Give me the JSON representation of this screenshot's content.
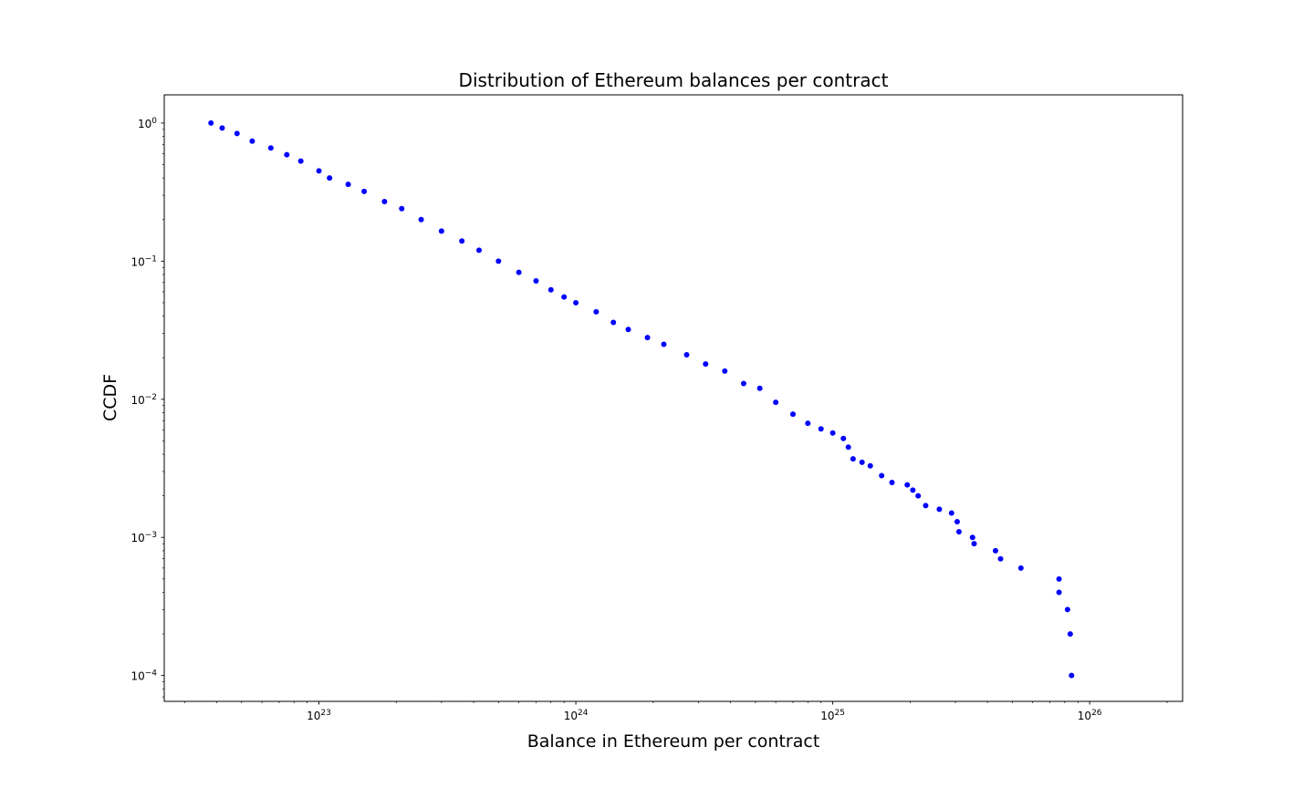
{
  "chart_data": {
    "type": "scatter",
    "title": "Distribution of Ethereum balances per contract",
    "xlabel": "Balance in Ethereum per contract",
    "ylabel": "CCDF",
    "x_scale": "log",
    "y_scale": "log",
    "xlim": [
      2.5e+22,
      2.3e+26
    ],
    "ylim": [
      6.5e-05,
      1.6
    ],
    "x_ticks": [
      {
        "value": 1e+23,
        "base": "10",
        "exp": "23"
      },
      {
        "value": 1e+24,
        "base": "10",
        "exp": "24"
      },
      {
        "value": 1e+25,
        "base": "10",
        "exp": "25"
      },
      {
        "value": 1e+26,
        "base": "10",
        "exp": "26"
      }
    ],
    "y_ticks": [
      {
        "value": 1,
        "base": "10",
        "exp": "0"
      },
      {
        "value": 0.1,
        "base": "10",
        "exp": "−1"
      },
      {
        "value": 0.01,
        "base": "10",
        "exp": "−2"
      },
      {
        "value": 0.001,
        "base": "10",
        "exp": "−3"
      },
      {
        "value": 0.0001,
        "base": "10",
        "exp": "−4"
      }
    ],
    "grid": false,
    "marker_color": "#0000ff",
    "series": [
      {
        "points": [
          [
            3.8e+22,
            1.0
          ],
          [
            4.2e+22,
            0.92
          ],
          [
            4.8e+22,
            0.84
          ],
          [
            5.5e+22,
            0.74
          ],
          [
            6.5e+22,
            0.66
          ],
          [
            7.5e+22,
            0.59
          ],
          [
            8.5e+22,
            0.53
          ],
          [
            1e+23,
            0.45
          ],
          [
            1.1e+23,
            0.4
          ],
          [
            1.3e+23,
            0.36
          ],
          [
            1.5e+23,
            0.32
          ],
          [
            1.8e+23,
            0.27
          ],
          [
            2.1e+23,
            0.24
          ],
          [
            2.5e+23,
            0.2
          ],
          [
            3e+23,
            0.165
          ],
          [
            3.6e+23,
            0.14
          ],
          [
            4.2e+23,
            0.12
          ],
          [
            5e+23,
            0.1
          ],
          [
            6e+23,
            0.083
          ],
          [
            7e+23,
            0.072
          ],
          [
            8e+23,
            0.062
          ],
          [
            9e+23,
            0.055
          ],
          [
            1e+24,
            0.05
          ],
          [
            1.2e+24,
            0.043
          ],
          [
            1.4e+24,
            0.036
          ],
          [
            1.6e+24,
            0.032
          ],
          [
            1.9e+24,
            0.028
          ],
          [
            2.2e+24,
            0.025
          ],
          [
            2.7e+24,
            0.021
          ],
          [
            3.2e+24,
            0.018
          ],
          [
            3.8e+24,
            0.016
          ],
          [
            4.5e+24,
            0.013
          ],
          [
            5.2e+24,
            0.012
          ],
          [
            6e+24,
            0.0095
          ],
          [
            7e+24,
            0.0078
          ],
          [
            8e+24,
            0.0067
          ],
          [
            9e+24,
            0.0061
          ],
          [
            1e+25,
            0.0057
          ],
          [
            1.1e+25,
            0.0052
          ],
          [
            1.15e+25,
            0.0045
          ],
          [
            1.2e+25,
            0.0037
          ],
          [
            1.3e+25,
            0.0035
          ],
          [
            1.4e+25,
            0.0033
          ],
          [
            1.55e+25,
            0.0028
          ],
          [
            1.7e+25,
            0.0025
          ],
          [
            1.95e+25,
            0.0024
          ],
          [
            2.05e+25,
            0.0022
          ],
          [
            2.15e+25,
            0.002
          ],
          [
            2.3e+25,
            0.0017
          ],
          [
            2.6e+25,
            0.0016
          ],
          [
            2.9e+25,
            0.0015
          ],
          [
            3.05e+25,
            0.0013
          ],
          [
            3.1e+25,
            0.0011
          ],
          [
            3.5e+25,
            0.001
          ],
          [
            3.55e+25,
            0.0009
          ],
          [
            4.3e+25,
            0.0008
          ],
          [
            4.5e+25,
            0.0007
          ],
          [
            5.4e+25,
            0.0006
          ],
          [
            7.6e+25,
            0.0005
          ],
          [
            7.6e+25,
            0.0004
          ],
          [
            8.2e+25,
            0.0003
          ],
          [
            8.4e+25,
            0.0002
          ],
          [
            8.5e+25,
            0.0001
          ]
        ]
      }
    ]
  }
}
